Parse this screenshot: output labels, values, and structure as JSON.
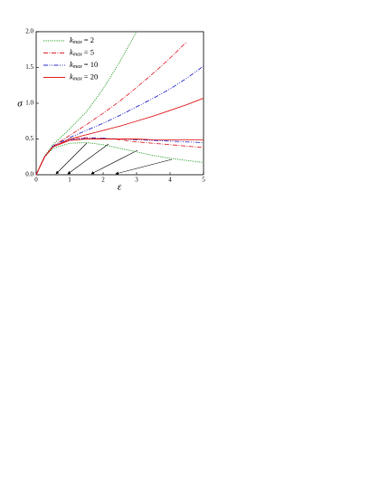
{
  "chart_data": {
    "type": "line",
    "x_label": "ε",
    "y_label": "σ",
    "x": [
      0,
      0.25,
      0.5,
      1,
      1.5,
      2,
      2.5,
      3,
      3.5,
      4,
      4.5,
      5
    ],
    "xlim": [
      0,
      5
    ],
    "ylim": [
      0,
      2.0
    ],
    "xticks": [
      0,
      1,
      2,
      3,
      4,
      5
    ],
    "yticks": [
      {
        "value": 0,
        "label": "0.0"
      },
      {
        "value": 0.5,
        "label": "0.5"
      },
      {
        "value": 1,
        "label": "1.0"
      },
      {
        "value": 1.5,
        "label": "1.5"
      },
      {
        "value": 2,
        "label": "2.0"
      }
    ],
    "legend_var": "k",
    "legend_sub": "max",
    "legend": "upper-left",
    "series": [
      {
        "name": "= 2",
        "color": "#2ca02c",
        "dash": "dot",
        "upper": [
          0,
          0.26,
          0.42,
          0.64,
          0.88,
          1.2,
          1.58,
          2.0,
          null,
          null,
          null,
          null
        ],
        "lower": [
          0,
          0.25,
          0.37,
          0.44,
          0.45,
          0.42,
          0.37,
          0.32,
          0.27,
          0.23,
          0.2,
          0.17
        ]
      },
      {
        "name": "= 5",
        "color": "#e0303a",
        "dash": "dashdot",
        "upper": [
          0,
          0.25,
          0.4,
          0.55,
          0.7,
          0.86,
          1.03,
          1.22,
          1.42,
          1.63,
          1.86,
          null
        ],
        "lower": [
          0,
          0.25,
          0.39,
          0.5,
          0.52,
          0.51,
          0.49,
          0.46,
          0.44,
          0.42,
          0.4,
          0.38
        ]
      },
      {
        "name": "= 10",
        "color": "#3030d0",
        "dash": "dashdotdot",
        "upper": [
          0,
          0.25,
          0.4,
          0.52,
          0.62,
          0.72,
          0.83,
          0.95,
          1.07,
          1.2,
          1.35,
          1.52
        ],
        "lower": [
          0,
          0.25,
          0.39,
          0.49,
          0.51,
          0.51,
          0.5,
          0.49,
          0.48,
          0.47,
          0.46,
          0.45
        ]
      },
      {
        "name": "= 20",
        "color": "#e02020",
        "dash": "solid",
        "upper": [
          0,
          0.25,
          0.39,
          0.5,
          0.56,
          0.62,
          0.68,
          0.75,
          0.82,
          0.9,
          0.98,
          1.07
        ],
        "lower": [
          0,
          0.25,
          0.39,
          0.48,
          0.5,
          0.5,
          0.5,
          0.5,
          0.49,
          0.49,
          0.49,
          0.49
        ]
      }
    ]
  }
}
